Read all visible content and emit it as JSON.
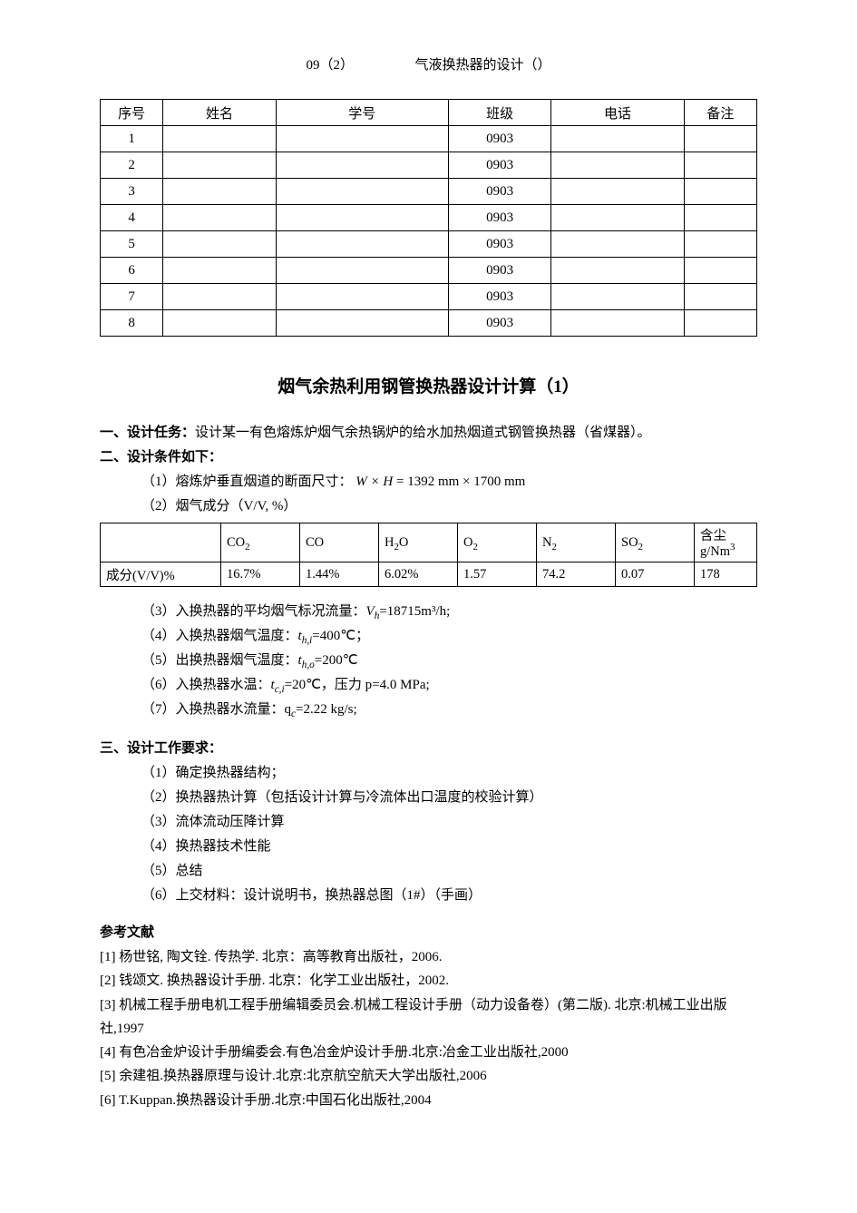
{
  "header": {
    "left": "09（2）",
    "right": "气液换热器的设计（）"
  },
  "roster": {
    "columns": [
      "序号",
      "姓名",
      "学号",
      "班级",
      "电话",
      "备注"
    ],
    "rows": [
      {
        "seq": "1",
        "name": "",
        "id": "",
        "class": "0903",
        "phone": "",
        "note": ""
      },
      {
        "seq": "2",
        "name": "",
        "id": "",
        "class": "0903",
        "phone": "",
        "note": ""
      },
      {
        "seq": "3",
        "name": "",
        "id": "",
        "class": "0903",
        "phone": "",
        "note": ""
      },
      {
        "seq": "4",
        "name": "",
        "id": "",
        "class": "0903",
        "phone": "",
        "note": ""
      },
      {
        "seq": "5",
        "name": "",
        "id": "",
        "class": "0903",
        "phone": "",
        "note": ""
      },
      {
        "seq": "6",
        "name": "",
        "id": "",
        "class": "0903",
        "phone": "",
        "note": ""
      },
      {
        "seq": "7",
        "name": "",
        "id": "",
        "class": "0903",
        "phone": "",
        "note": ""
      },
      {
        "seq": "8",
        "name": "",
        "id": "",
        "class": "0903",
        "phone": "",
        "note": ""
      }
    ]
  },
  "title": "烟气余热利用钢管换热器设计计算（1）",
  "sec1": {
    "head": "一、设计任务：",
    "text": "设计某一有色熔炼炉烟气余热锅炉的给水加热烟道式钢管换热器（省煤器）。"
  },
  "sec2": {
    "head": "二、设计条件如下：",
    "c1_pre": "（1）熔炼炉垂直烟道的断面尺寸：",
    "c1_formula_WH": "W × H",
    "c1_eq": " = ",
    "c1_val": "1392 mm × 1700 mm",
    "c2": "（2）烟气成分（V/V, %）",
    "gas": {
      "row_label": "成分(V/V)%",
      "headers": [
        "CO₂",
        "CO",
        "H₂O",
        "O₂",
        "N₂",
        "SO₂",
        "含尘 g/Nm³"
      ],
      "values": [
        "16.7%",
        "1.44%",
        "6.02%",
        "1.57",
        "74.2",
        "0.07",
        "178"
      ]
    },
    "c3_pre": "（3）入换热器的平均烟气标况流量：",
    "c3_sym": "Vₕ",
    "c3_val": "=18715m³/h;",
    "c4_pre": "（4）入换热器烟气温度：",
    "c4_sym": "t_h,i",
    "c4_val": "=400℃；",
    "c5_pre": "（5）出换热器烟气温度：",
    "c5_sym": "t_h,o",
    "c5_val": "=200℃",
    "c6_pre": "（6）入换热器水温：",
    "c6_sym": "t_c,i",
    "c6_val": "=20℃，压力 p=4.0 MPa;",
    "c7_pre": "（7）入换热器水流量：",
    "c7_sym": "q_c",
    "c7_val": "=2.22 kg/s;"
  },
  "sec3": {
    "head": "三、设计工作要求：",
    "items": [
      "（1）确定换热器结构；",
      "（2）换热器热计算（包括设计计算与冷流体出口温度的校验计算）",
      "（3）流体流动压降计算",
      "（4）换热器技术性能",
      "（5）总结",
      "（6）上交材料：设计说明书，换热器总图（1#）（手画）"
    ]
  },
  "refs": {
    "head": "参考文献",
    "items": [
      "[1]  杨世铭, 陶文铨. 传热学. 北京：高等教育出版社，2006.",
      "[2]  钱颂文. 换热器设计手册. 北京：化学工业出版社，2002.",
      "[3]  机械工程手册电机工程手册编辑委员会.机械工程设计手册（动力设备卷）(第二版). 北京:机械工业出版社,1997",
      "[4]  有色冶金炉设计手册编委会.有色冶金炉设计手册.北京:冶金工业出版社,2000",
      "[5]  余建祖.换热器原理与设计.北京:北京航空航天大学出版社,2006",
      "[6]  T.Kuppan.换热器设计手册.北京:中国石化出版社,2004"
    ]
  }
}
